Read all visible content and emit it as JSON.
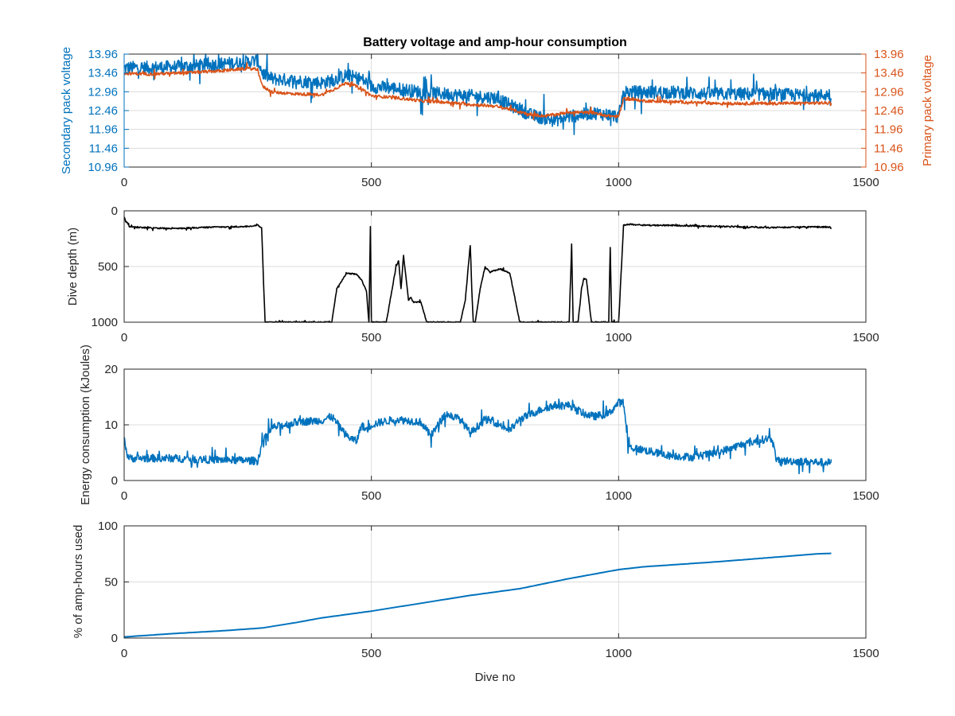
{
  "chart_data": [
    {
      "type": "line",
      "title": "Battery voltage and amp-hour consumption",
      "xlabel": "",
      "ylabel": "Secondary pack voltage",
      "ylabel_right": "Primary pack voltage",
      "xlim": [
        0,
        1500
      ],
      "ylim": [
        10.96,
        13.96
      ],
      "xticks": [
        "0",
        "500",
        "1000",
        "1500"
      ],
      "yticks": [
        "10.96",
        "11.46",
        "11.96",
        "12.46",
        "12.96",
        "13.46",
        "13.96"
      ],
      "grid": true,
      "series": [
        {
          "axis": "left",
          "color": "#0072BD",
          "noise": 0.35,
          "x": [
            0,
            50,
            100,
            150,
            200,
            250,
            270,
            280,
            300,
            350,
            400,
            420,
            450,
            480,
            500,
            550,
            600,
            650,
            700,
            750,
            780,
            800,
            820,
            850,
            870,
            900,
            950,
            980,
            1000,
            1010,
            1050,
            1100,
            1200,
            1300,
            1400,
            1430
          ],
          "y": [
            13.6,
            13.6,
            13.62,
            13.65,
            13.7,
            13.75,
            13.8,
            13.45,
            13.3,
            13.25,
            13.2,
            13.25,
            13.4,
            13.3,
            13.1,
            13.05,
            12.95,
            12.9,
            12.85,
            12.8,
            12.6,
            12.5,
            12.35,
            12.25,
            12.2,
            12.3,
            12.4,
            12.35,
            12.3,
            12.95,
            12.95,
            12.95,
            12.9,
            12.9,
            12.85,
            12.9
          ]
        },
        {
          "axis": "right",
          "color": "#D95319",
          "noise": 0.08,
          "x": [
            0,
            50,
            100,
            150,
            200,
            250,
            270,
            280,
            300,
            350,
            400,
            420,
            450,
            480,
            500,
            550,
            600,
            650,
            700,
            750,
            780,
            800,
            820,
            850,
            870,
            900,
            950,
            980,
            1000,
            1010,
            1050,
            1100,
            1200,
            1300,
            1400,
            1430
          ],
          "y": [
            13.45,
            13.43,
            13.45,
            13.48,
            13.52,
            13.58,
            13.55,
            13.1,
            12.95,
            12.9,
            12.88,
            13.0,
            13.2,
            13.05,
            12.85,
            12.8,
            12.72,
            12.68,
            12.62,
            12.58,
            12.5,
            12.42,
            12.35,
            12.32,
            12.35,
            12.42,
            12.4,
            12.32,
            12.3,
            12.78,
            12.72,
            12.7,
            12.65,
            12.65,
            12.66,
            12.66
          ]
        }
      ]
    },
    {
      "type": "line",
      "title": "",
      "xlabel": "",
      "ylabel": "Dive depth (m)",
      "xlim": [
        0,
        1500
      ],
      "ylim": [
        1000,
        0
      ],
      "reversed_y": true,
      "xticks": [
        "0",
        "500",
        "1000",
        "1500"
      ],
      "yticks": [
        "0",
        "500",
        "1000"
      ],
      "grid": true,
      "series": [
        {
          "color": "#000000",
          "noise": 12,
          "x": [
            0,
            10,
            30,
            60,
            100,
            150,
            200,
            250,
            270,
            278,
            282,
            285,
            300,
            350,
            400,
            420,
            430,
            450,
            470,
            480,
            490,
            495,
            498,
            500,
            503,
            506,
            510,
            520,
            530,
            550,
            555,
            560,
            565,
            570,
            575,
            580,
            585,
            600,
            612,
            620,
            650,
            680,
            690,
            700,
            703,
            706,
            710,
            720,
            730,
            740,
            760,
            780,
            800,
            820,
            850,
            880,
            900,
            905,
            908,
            912,
            918,
            925,
            930,
            935,
            945,
            950,
            960,
            970,
            980,
            983,
            986,
            990,
            995,
            1000,
            1010,
            1020,
            1050,
            1100,
            1200,
            1300,
            1400,
            1430
          ],
          "y": [
            60,
            140,
            150,
            155,
            160,
            150,
            145,
            140,
            130,
            150,
            650,
            1000,
            1000,
            1000,
            1000,
            1000,
            700,
            560,
            570,
            620,
            720,
            1000,
            140,
            1000,
            1000,
            1000,
            1000,
            1000,
            1000,
            500,
            450,
            700,
            400,
            600,
            800,
            780,
            820,
            820,
            1000,
            1000,
            1000,
            1000,
            800,
            300,
            700,
            1000,
            1000,
            700,
            500,
            550,
            520,
            560,
            1000,
            1000,
            1000,
            1000,
            1000,
            300,
            1000,
            1000,
            1000,
            700,
            600,
            620,
            1000,
            1000,
            1000,
            1000,
            1000,
            330,
            1000,
            1000,
            1000,
            1000,
            130,
            120,
            130,
            130,
            140,
            150,
            145,
            145
          ]
        }
      ]
    },
    {
      "type": "line",
      "title": "",
      "xlabel": "",
      "ylabel": "Energy consumption (kJoules)",
      "xlim": [
        0,
        1500
      ],
      "ylim": [
        0,
        20
      ],
      "xticks": [
        "0",
        "500",
        "1000",
        "1500"
      ],
      "yticks": [
        "0",
        "10",
        "20"
      ],
      "grid": true,
      "series": [
        {
          "color": "#0072BD",
          "noise": 1.4,
          "x": [
            0,
            5,
            10,
            20,
            50,
            100,
            150,
            200,
            250,
            270,
            280,
            300,
            350,
            400,
            420,
            450,
            470,
            480,
            490,
            500,
            520,
            550,
            600,
            620,
            650,
            680,
            700,
            730,
            750,
            780,
            800,
            850,
            870,
            900,
            930,
            950,
            980,
            1000,
            1010,
            1020,
            1050,
            1100,
            1150,
            1200,
            1250,
            1300,
            1310,
            1320,
            1350,
            1400,
            1430
          ],
          "y": [
            8,
            5,
            4,
            4,
            4,
            4,
            3.8,
            3.7,
            3.6,
            3.5,
            7,
            9.5,
            10.5,
            10.8,
            11.5,
            8,
            7,
            10,
            9,
            10,
            10.5,
            11,
            10.5,
            8,
            12,
            11,
            8.5,
            11,
            10.5,
            9,
            11,
            13,
            13.5,
            13.5,
            12,
            11.5,
            12,
            14,
            14,
            6,
            5.5,
            4.5,
            4.2,
            5,
            6.5,
            7.5,
            7.5,
            3.5,
            3.5,
            3.3,
            3.2
          ]
        }
      ]
    },
    {
      "type": "line",
      "title": "",
      "xlabel": "Dive no",
      "ylabel": "% of amp-hours used",
      "xlim": [
        0,
        1500
      ],
      "ylim": [
        0,
        100
      ],
      "xticks": [
        "0",
        "500",
        "1000",
        "1500"
      ],
      "yticks": [
        "0",
        "50",
        "100"
      ],
      "grid": true,
      "series": [
        {
          "color": "#0072BD",
          "noise": 0,
          "x": [
            0,
            100,
            200,
            280,
            350,
            400,
            500,
            600,
            700,
            800,
            900,
            1000,
            1050,
            1100,
            1200,
            1300,
            1400,
            1430
          ],
          "y": [
            1,
            4,
            6.5,
            9,
            14,
            18,
            24,
            31,
            38,
            44,
            53,
            61,
            63.5,
            65,
            68,
            71.5,
            75,
            75.5
          ]
        }
      ]
    }
  ]
}
